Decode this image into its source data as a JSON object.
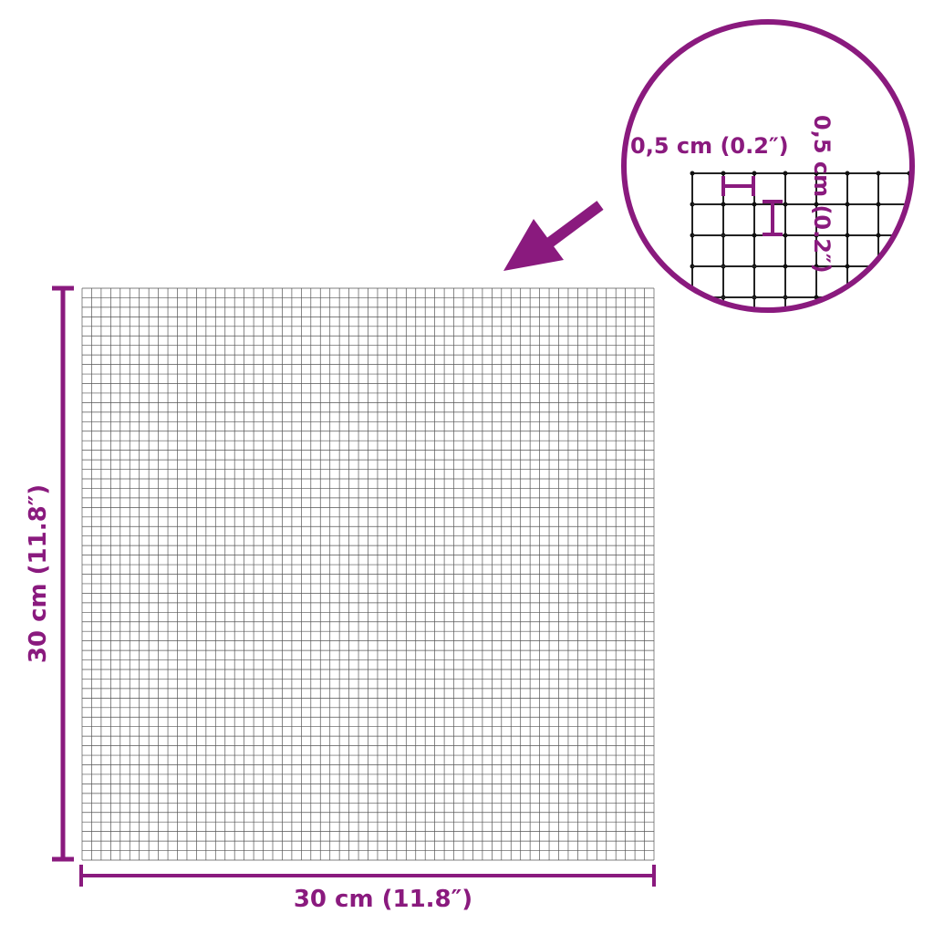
{
  "colors": {
    "accent": "#8a1a7e",
    "grid": "#333333"
  },
  "grid": {
    "cells_per_side": 60
  },
  "dimensions": {
    "width_label": "30 cm (11.8″)",
    "height_label": "30 cm (11.8″)"
  },
  "detail": {
    "mesh_width_label": "0,5 cm (0.2″)",
    "mesh_height_label": "0,5 cm (0.2″)",
    "cells_visible": 5
  },
  "icons": {
    "pointer": "arrow-down-left-icon"
  }
}
